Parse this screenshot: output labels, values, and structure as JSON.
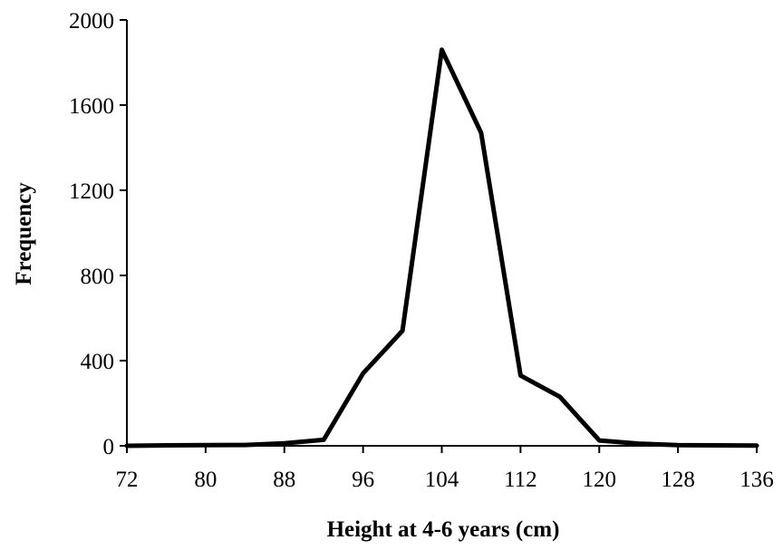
{
  "chart_data": {
    "type": "line",
    "xlabel": "Height at 4-6 years (cm)",
    "ylabel": "Frequency",
    "xlim": [
      72,
      136
    ],
    "ylim": [
      0,
      2000
    ],
    "x_ticks": [
      "72",
      "80",
      "88",
      "96",
      "104",
      "112",
      "120",
      "128",
      "136"
    ],
    "y_ticks": [
      "0",
      "400",
      "800",
      "1200",
      "1600",
      "2000"
    ],
    "grid": false,
    "legend": "none",
    "line_color": "#000000",
    "series": [
      {
        "x": [
          72,
          76,
          80,
          84,
          88,
          92,
          96,
          100,
          104,
          108,
          112,
          116,
          120,
          124,
          128,
          132,
          136
        ],
        "values": [
          0,
          2,
          3,
          4,
          12,
          28,
          340,
          540,
          1860,
          1470,
          330,
          230,
          25,
          10,
          3,
          2,
          1
        ]
      }
    ]
  }
}
